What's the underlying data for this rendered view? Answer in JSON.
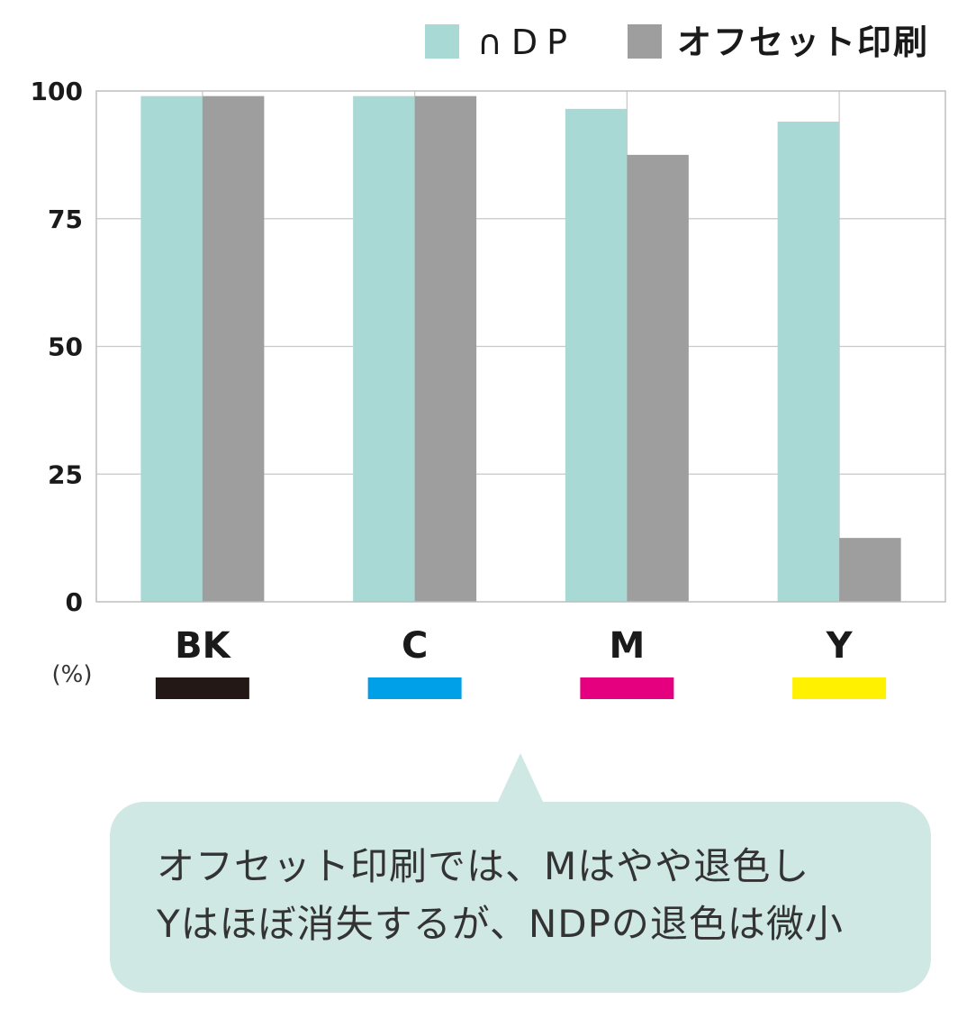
{
  "chart_data": {
    "type": "bar",
    "categories": [
      "BK",
      "C",
      "M",
      "Y"
    ],
    "category_colors": [
      "#231815",
      "#00a0e9",
      "#e4007f",
      "#fff100"
    ],
    "series": [
      {
        "name": "∩DP",
        "values": [
          99,
          99,
          96.5,
          94
        ],
        "color": "#a9d9d5"
      },
      {
        "name": "オフセット印刷",
        "values": [
          99,
          99,
          87.5,
          12.5
        ],
        "color": "#9e9e9e"
      }
    ],
    "ylim": [
      0,
      100
    ],
    "yticks": [
      0,
      25,
      50,
      75,
      100
    ],
    "ylabel": "(%)",
    "grid": true,
    "legend": "top-right"
  },
  "callout": {
    "line1": "オフセット印刷では、Mはやや退色し",
    "line2": "Yはほぼ消失するが、NDPの退色は微小"
  }
}
